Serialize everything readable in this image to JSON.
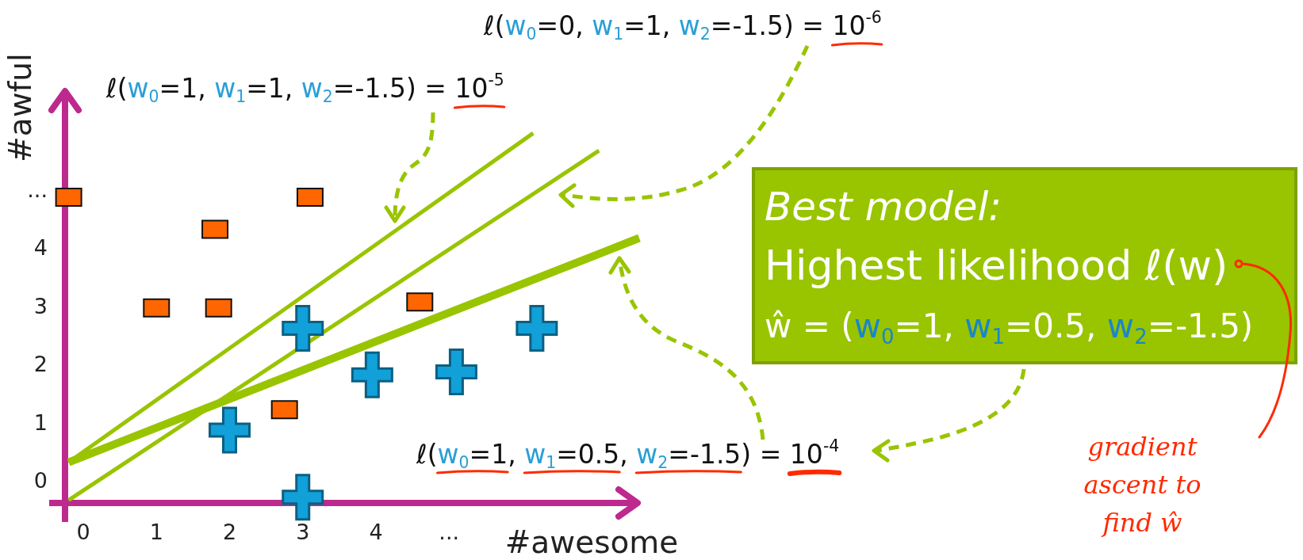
{
  "chart_data": {
    "type": "scatter",
    "xlabel": "#awesome",
    "ylabel": "#awful",
    "xlim": [
      -0.25,
      7.6
    ],
    "ylim": [
      -0.35,
      6.75
    ],
    "xticks": [
      0,
      1,
      2,
      3,
      4,
      {
        "value": 5,
        "label": "..."
      }
    ],
    "yticks": [
      0,
      1,
      2,
      3,
      4,
      {
        "value": 5,
        "label": "..."
      }
    ],
    "series": [
      {
        "color": "#ff6600",
        "marker": "square",
        "x": [
          -0.2,
          3.1,
          1.8,
          1,
          1.85,
          2.75,
          4.6
        ],
        "values": [
          4.9,
          4.9,
          4.35,
          3,
          3,
          1.25,
          3.1
        ]
      },
      {
        "color": "#12a0d9",
        "marker": "cross",
        "x": [
          3,
          2,
          3,
          3.95,
          5.1,
          6.2
        ],
        "values": [
          2.65,
          0.9,
          -0.25,
          1.85,
          1.9,
          2.65
        ]
      },
      {
        "type": "line",
        "color": "#99c400",
        "x": [
          -0.2,
          6.15
        ],
        "values": [
          0.35,
          6
        ]
      },
      {
        "type": "line",
        "color": "#99c400",
        "x": [
          -0.2,
          7.05
        ],
        "values": [
          -0.3,
          5.7
        ]
      },
      {
        "type": "line",
        "color": "#99c400",
        "x": [
          -0.2,
          7.6
        ],
        "values": [
          0.35,
          4.2
        ]
      }
    ],
    "annotations": [
      "ℓ(w$_{0}$=1, w$_{1}$=1, w$_{2}$=-1.5) = 10$^{-5}$",
      "ℓ(w$_{0}$=0, w$_{1}$=1, w$_{2}$=-1.5) = 10$^{-6}$",
      "ℓ(w$_{0}$=1, w$_{1}$=0.5, w$_{2}$=-1.5) = 10$^{-4}$",
      "Best model:",
      "Highest likelihood ℓ(w)",
      "ŵ = (w$_{0}$=1, w$_{1}$=0.5, w$_{2}$=-1.5)",
      "gradient ascent to find ŵ"
    ]
  }
}
